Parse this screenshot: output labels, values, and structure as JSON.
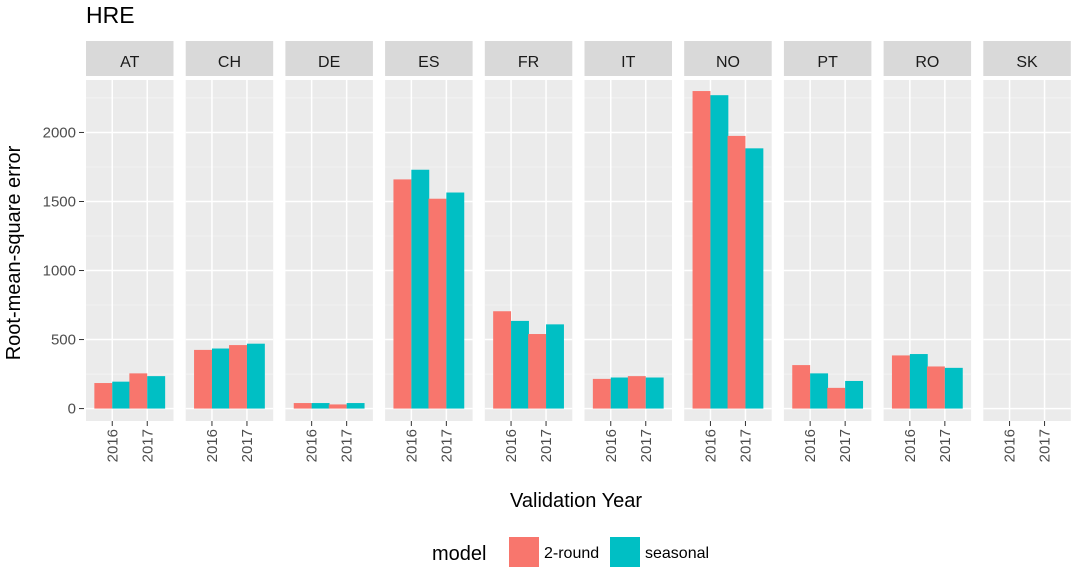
{
  "chart_data": {
    "type": "bar",
    "title": "HRE",
    "xlabel": "Validation Year",
    "ylabel": "Root-mean-square error",
    "ylim": [
      -90,
      2380
    ],
    "yticks": [
      0,
      500,
      1000,
      1500,
      2000
    ],
    "grid": true,
    "legend_position": "bottom",
    "legend_title": "model",
    "categories": [
      "2016",
      "2017"
    ],
    "series": [
      {
        "name": "2-round",
        "color": "#F8766D"
      },
      {
        "name": "seasonal",
        "color": "#00BFC4"
      }
    ],
    "panels": [
      {
        "label": "AT",
        "values": {
          "2-round": [
            185,
            255
          ],
          "seasonal": [
            195,
            235
          ]
        }
      },
      {
        "label": "CH",
        "values": {
          "2-round": [
            425,
            460
          ],
          "seasonal": [
            435,
            470
          ]
        }
      },
      {
        "label": "DE",
        "values": {
          "2-round": [
            40,
            30
          ],
          "seasonal": [
            40,
            40
          ]
        }
      },
      {
        "label": "ES",
        "values": {
          "2-round": [
            1660,
            1520
          ],
          "seasonal": [
            1730,
            1565
          ]
        }
      },
      {
        "label": "FR",
        "values": {
          "2-round": [
            705,
            540
          ],
          "seasonal": [
            635,
            610
          ]
        }
      },
      {
        "label": "IT",
        "values": {
          "2-round": [
            215,
            235
          ],
          "seasonal": [
            225,
            225
          ]
        }
      },
      {
        "label": "NO",
        "values": {
          "2-round": [
            2300,
            1975
          ],
          "seasonal": [
            2270,
            1885
          ]
        }
      },
      {
        "label": "PT",
        "values": {
          "2-round": [
            315,
            150
          ],
          "seasonal": [
            255,
            200
          ]
        }
      },
      {
        "label": "RO",
        "values": {
          "2-round": [
            385,
            305
          ],
          "seasonal": [
            395,
            295
          ]
        }
      },
      {
        "label": "SK",
        "values": {
          "2-round": [
            0,
            0
          ],
          "seasonal": [
            0,
            0
          ]
        }
      }
    ]
  }
}
